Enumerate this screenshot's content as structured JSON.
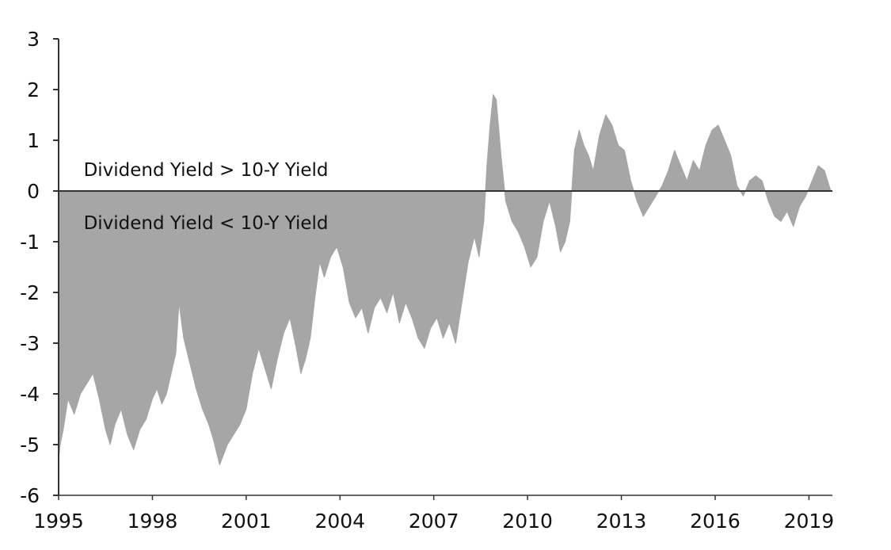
{
  "chart_data": {
    "type": "area",
    "title": "",
    "xlabel": "",
    "ylabel": "",
    "xlim": [
      1995,
      2019.75
    ],
    "ylim": [
      -6,
      3
    ],
    "grid": false,
    "legend": "none",
    "fill_color": "#a6a6a6",
    "axis_color": "#333333",
    "x_ticks": [
      1995,
      1998,
      2001,
      2004,
      2007,
      2010,
      2013,
      2016,
      2019
    ],
    "x_tick_labels": [
      "1995",
      "1998",
      "2001",
      "2004",
      "2007",
      "2010",
      "2013",
      "2016",
      "2019"
    ],
    "y_ticks": [
      3,
      2,
      1,
      0,
      -1,
      -2,
      -3,
      -4,
      -5,
      -6
    ],
    "y_tick_labels": [
      "3",
      "2",
      "1",
      "0",
      "-1",
      "-2",
      "-3",
      "-4",
      "-5",
      "-6"
    ],
    "annotations": [
      {
        "text": "Dividend Yield > 10-Y Yield",
        "x": 1995.8,
        "y": 0.3
      },
      {
        "text": "Dividend Yield < 10-Y Yield",
        "x": 1995.8,
        "y": -0.75
      }
    ],
    "series": [
      {
        "x": [
          1995.0,
          1995.05,
          1995.15,
          1995.3,
          1995.5,
          1995.7,
          1995.9,
          1996.1,
          1996.3,
          1996.5,
          1996.65,
          1996.8,
          1997.0,
          1997.2,
          1997.4,
          1997.6,
          1997.8,
          1998.0,
          1998.15,
          1998.3,
          1998.45,
          1998.6,
          1998.75,
          1998.85,
          1999.0,
          1999.2,
          1999.4,
          1999.6,
          1999.8,
          1999.95,
          2000.15,
          2000.4,
          2000.6,
          2000.8,
          2001.0,
          2001.2,
          2001.4,
          2001.6,
          2001.8,
          2002.0,
          2002.2,
          2002.4,
          2002.6,
          2002.75,
          2002.9,
          2003.05,
          2003.2,
          2003.35,
          2003.5,
          2003.7,
          2003.9,
          2004.1,
          2004.3,
          2004.5,
          2004.7,
          2004.9,
          2005.1,
          2005.3,
          2005.5,
          2005.7,
          2005.9,
          2006.1,
          2006.3,
          2006.5,
          2006.7,
          2006.9,
          2007.1,
          2007.3,
          2007.5,
          2007.7,
          2007.9,
          2008.1,
          2008.3,
          2008.45,
          2008.6,
          2008.7,
          2008.8,
          2008.9,
          2009.0,
          2009.15,
          2009.3,
          2009.5,
          2009.7,
          2009.9,
          2010.1,
          2010.3,
          2010.5,
          2010.7,
          2010.9,
          2011.05,
          2011.2,
          2011.35,
          2011.5,
          2011.65,
          2011.8,
          2011.95,
          2012.1,
          2012.3,
          2012.5,
          2012.7,
          2012.9,
          2013.1,
          2013.3,
          2013.5,
          2013.7,
          2013.9,
          2014.1,
          2014.3,
          2014.5,
          2014.7,
          2014.9,
          2015.1,
          2015.3,
          2015.5,
          2015.7,
          2015.9,
          2016.1,
          2016.3,
          2016.5,
          2016.7,
          2016.9,
          2017.1,
          2017.3,
          2017.5,
          2017.7,
          2017.9,
          2018.1,
          2018.3,
          2018.5,
          2018.7,
          2018.9,
          2019.1,
          2019.3,
          2019.5,
          2019.7
        ],
        "values": [
          -5.3,
          -5.0,
          -4.7,
          -4.1,
          -4.4,
          -4.0,
          -3.8,
          -3.6,
          -4.1,
          -4.7,
          -5.0,
          -4.6,
          -4.3,
          -4.8,
          -5.1,
          -4.7,
          -4.5,
          -4.1,
          -3.9,
          -4.2,
          -4.0,
          -3.6,
          -3.2,
          -2.2,
          -2.9,
          -3.4,
          -3.9,
          -4.3,
          -4.6,
          -4.9,
          -5.4,
          -5.0,
          -4.8,
          -4.6,
          -4.3,
          -3.6,
          -3.1,
          -3.5,
          -3.9,
          -3.3,
          -2.8,
          -2.5,
          -3.1,
          -3.6,
          -3.3,
          -2.9,
          -2.1,
          -1.4,
          -1.7,
          -1.3,
          -1.1,
          -1.5,
          -2.2,
          -2.5,
          -2.3,
          -2.8,
          -2.3,
          -2.1,
          -2.4,
          -2.0,
          -2.6,
          -2.2,
          -2.5,
          -2.9,
          -3.1,
          -2.7,
          -2.5,
          -2.9,
          -2.6,
          -3.0,
          -2.2,
          -1.4,
          -0.9,
          -1.3,
          -0.6,
          0.5,
          1.3,
          1.9,
          1.8,
          0.7,
          -0.2,
          -0.6,
          -0.8,
          -1.1,
          -1.5,
          -1.3,
          -0.6,
          -0.2,
          -0.7,
          -1.2,
          -1.0,
          -0.6,
          0.8,
          1.2,
          0.9,
          0.7,
          0.4,
          1.1,
          1.5,
          1.3,
          0.9,
          0.8,
          0.2,
          -0.2,
          -0.5,
          -0.3,
          -0.1,
          0.1,
          0.4,
          0.8,
          0.5,
          0.2,
          0.6,
          0.4,
          0.9,
          1.2,
          1.3,
          1.0,
          0.7,
          0.1,
          -0.1,
          0.2,
          0.3,
          0.2,
          -0.2,
          -0.5,
          -0.6,
          -0.4,
          -0.7,
          -0.3,
          -0.1,
          0.2,
          0.5,
          0.4,
          0.0
        ]
      }
    ]
  }
}
